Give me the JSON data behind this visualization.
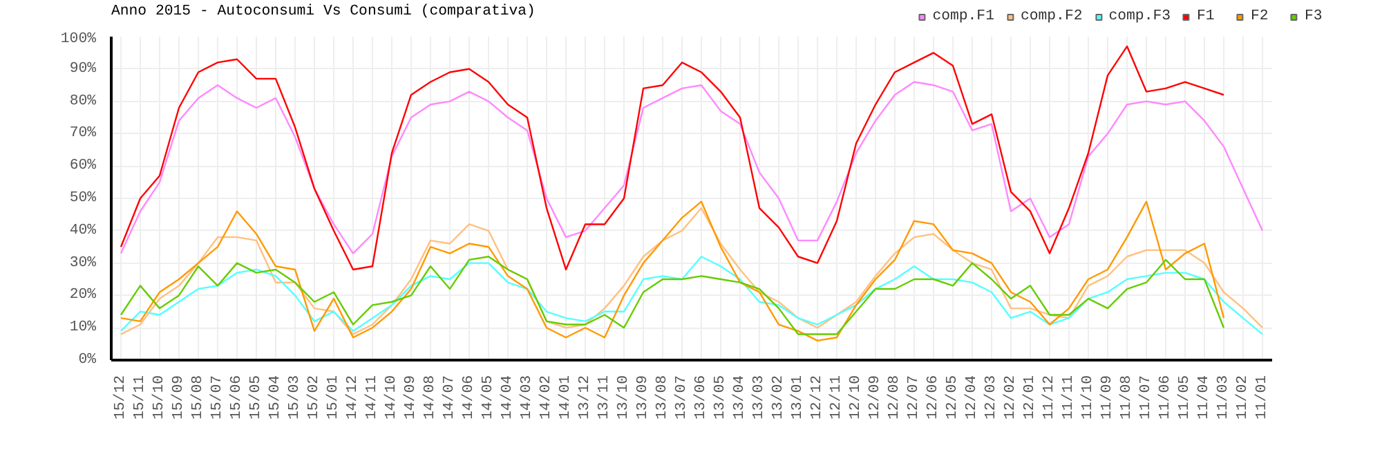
{
  "chart_data": {
    "type": "line",
    "title": "Anno 2015 - Autoconsumi Vs Consumi (comparativa)",
    "categories": [
      "15/12",
      "15/11",
      "15/10",
      "15/09",
      "15/08",
      "15/07",
      "15/06",
      "15/05",
      "15/04",
      "15/03",
      "15/02",
      "15/01",
      "14/12",
      "14/11",
      "14/10",
      "14/09",
      "14/08",
      "14/07",
      "14/06",
      "14/05",
      "14/04",
      "14/03",
      "14/02",
      "14/01",
      "13/12",
      "13/11",
      "13/10",
      "13/09",
      "13/08",
      "13/07",
      "13/06",
      "13/05",
      "13/04",
      "13/03",
      "13/02",
      "13/01",
      "12/12",
      "12/11",
      "12/10",
      "12/09",
      "12/08",
      "12/07",
      "12/06",
      "12/05",
      "12/04",
      "12/03",
      "12/02",
      "12/01",
      "11/12",
      "11/11",
      "11/10",
      "11/09",
      "11/08",
      "11/07",
      "11/06",
      "11/05",
      "11/04",
      "11/03",
      "11/02",
      "11/01"
    ],
    "series": [
      {
        "name": "comp.F1",
        "color": "#ff88ff",
        "values": [
          33,
          46,
          55,
          74,
          81,
          85,
          81,
          78,
          81,
          69,
          53,
          42,
          33,
          39,
          63,
          75,
          79,
          80,
          83,
          80,
          75,
          71,
          50,
          38,
          40,
          47,
          54,
          78,
          81,
          84,
          85,
          77,
          73,
          58,
          50,
          37,
          37,
          49,
          64,
          74,
          82,
          86,
          85,
          83,
          71,
          73,
          46,
          50,
          38,
          42,
          63,
          70,
          79,
          80,
          79,
          80,
          74,
          66,
          53,
          40
        ]
      },
      {
        "name": "comp.F2",
        "color": "#ffc080",
        "values": [
          8,
          11,
          19,
          23,
          30,
          38,
          38,
          37,
          24,
          24,
          16,
          15,
          8,
          11,
          17,
          25,
          37,
          36,
          42,
          40,
          28,
          25,
          12,
          10,
          11,
          16,
          23,
          32,
          37,
          40,
          47,
          36,
          28,
          21,
          18,
          13,
          10,
          14,
          18,
          26,
          33,
          38,
          39,
          34,
          30,
          28,
          16,
          16,
          14,
          13,
          23,
          26,
          32,
          34,
          34,
          34,
          30,
          21,
          16,
          10
        ]
      },
      {
        "name": "comp.F3",
        "color": "#55ffff",
        "values": [
          9,
          15,
          14,
          18,
          22,
          23,
          27,
          28,
          26,
          20,
          12,
          15,
          9,
          13,
          17,
          23,
          26,
          25,
          30,
          30,
          24,
          22,
          15,
          13,
          12,
          15,
          15,
          25,
          26,
          25,
          32,
          29,
          25,
          18,
          17,
          13,
          11,
          14,
          17,
          22,
          25,
          29,
          25,
          25,
          24,
          21,
          13,
          15,
          11,
          13,
          19,
          21,
          25,
          26,
          27,
          27,
          25,
          18,
          13,
          8
        ]
      },
      {
        "name": "F1",
        "color": "#ff0000",
        "values": [
          35,
          50,
          57,
          78,
          89,
          92,
          93,
          87,
          87,
          72,
          53,
          40,
          28,
          29,
          64,
          82,
          86,
          89,
          90,
          86,
          79,
          75,
          47,
          28,
          42,
          42,
          50,
          84,
          85,
          92,
          89,
          83,
          75,
          47,
          41,
          32,
          30,
          43,
          67,
          79,
          89,
          92,
          95,
          91,
          73,
          76,
          52,
          46,
          33,
          47,
          64,
          88,
          97,
          83,
          84,
          86,
          84,
          82,
          null,
          null
        ]
      },
      {
        "name": "F2",
        "color": "#ff9900",
        "values": [
          13,
          12,
          21,
          25,
          30,
          35,
          46,
          39,
          29,
          28,
          9,
          19,
          7,
          10,
          15,
          22,
          35,
          33,
          36,
          35,
          26,
          22,
          10,
          7,
          10,
          7,
          20,
          30,
          37,
          44,
          49,
          35,
          24,
          21,
          11,
          9,
          6,
          7,
          17,
          25,
          31,
          43,
          42,
          34,
          33,
          30,
          21,
          18,
          11,
          16,
          25,
          28,
          38,
          49,
          28,
          33,
          36,
          13,
          null,
          null
        ]
      },
      {
        "name": "F3",
        "color": "#66cc00",
        "values": [
          14,
          23,
          16,
          20,
          29,
          23,
          30,
          27,
          28,
          24,
          18,
          21,
          11,
          17,
          18,
          20,
          29,
          22,
          31,
          32,
          28,
          25,
          12,
          11,
          11,
          14,
          10,
          21,
          25,
          25,
          26,
          25,
          24,
          22,
          16,
          8,
          8,
          8,
          15,
          22,
          22,
          25,
          25,
          23,
          30,
          25,
          19,
          23,
          14,
          14,
          19,
          16,
          22,
          24,
          31,
          25,
          25,
          10,
          null,
          null
        ]
      }
    ],
    "ylim": [
      0,
      100
    ],
    "yticks": [
      {
        "value": 0,
        "label": "0%"
      },
      {
        "value": 10,
        "label": "10%"
      },
      {
        "value": 20,
        "label": "20%"
      },
      {
        "value": 30,
        "label": "30%"
      },
      {
        "value": 40,
        "label": "40%"
      },
      {
        "value": 50,
        "label": "50%"
      },
      {
        "value": 60,
        "label": "60%"
      },
      {
        "value": 70,
        "label": "70%"
      },
      {
        "value": 80,
        "label": "80%"
      },
      {
        "value": 90,
        "label": "90%"
      },
      {
        "value": 100,
        "label": "100%"
      }
    ],
    "grid": true,
    "legend": "top right",
    "marker": "none",
    "line_style": "solid"
  }
}
